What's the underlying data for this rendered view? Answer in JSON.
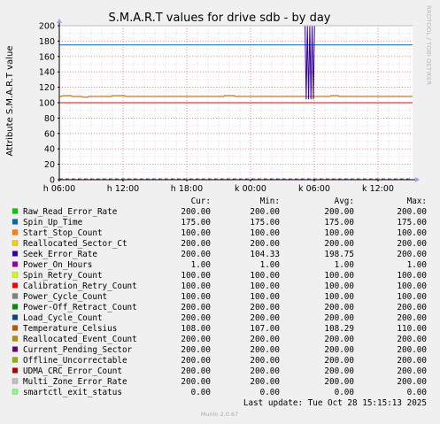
{
  "chart_data": {
    "type": "line",
    "title": "S.M.A.R.T values for drive sdb - by day",
    "ylabel": "Attribute S.M.A.R.T value",
    "watermark": "RRDTOOL / TOBI OETIKER",
    "footer": "Munin 2.0.67",
    "ylim": [
      0,
      200
    ],
    "y_ticks": [
      "0",
      "20",
      "40",
      "60",
      "80",
      "100",
      "120",
      "140",
      "160",
      "180",
      "200"
    ],
    "x_ticks": [
      "h 06:00",
      "h 12:00",
      "h 18:00",
      "k 00:00",
      "k 06:00",
      "k 12:00"
    ],
    "grid": true,
    "legend_headers": [
      "Cur:",
      "Min:",
      "Avg:",
      "Max:"
    ],
    "series": [
      {
        "name": "Raw_Read_Error_Rate",
        "color": "#00cc00",
        "values": [
          "200.00",
          "200.00",
          "200.00",
          "200.00"
        ]
      },
      {
        "name": "Spin_Up_Time",
        "color": "#0066b3",
        "values": [
          "175.00",
          "175.00",
          "175.00",
          "175.00"
        ]
      },
      {
        "name": "Start_Stop_Count",
        "color": "#ff8000",
        "values": [
          "100.00",
          "100.00",
          "100.00",
          "100.00"
        ]
      },
      {
        "name": "Reallocated_Sector_Ct",
        "color": "#ffcc00",
        "values": [
          "200.00",
          "200.00",
          "200.00",
          "200.00"
        ]
      },
      {
        "name": "Seek_Error_Rate",
        "color": "#330099",
        "values": [
          "200.00",
          "104.33",
          "198.75",
          "200.00"
        ]
      },
      {
        "name": "Power_On_Hours",
        "color": "#990099",
        "values": [
          "1.00",
          "1.00",
          "1.00",
          "1.00"
        ]
      },
      {
        "name": "Spin_Retry_Count",
        "color": "#ccff00",
        "values": [
          "100.00",
          "100.00",
          "100.00",
          "100.00"
        ]
      },
      {
        "name": "Calibration_Retry_Count",
        "color": "#ff0000",
        "values": [
          "100.00",
          "100.00",
          "100.00",
          "100.00"
        ]
      },
      {
        "name": "Power_Cycle_Count",
        "color": "#808080",
        "values": [
          "100.00",
          "100.00",
          "100.00",
          "100.00"
        ]
      },
      {
        "name": "Power-Off_Retract_Count",
        "color": "#008f00",
        "values": [
          "200.00",
          "200.00",
          "200.00",
          "200.00"
        ]
      },
      {
        "name": "Load_Cycle_Count",
        "color": "#00487d",
        "values": [
          "200.00",
          "200.00",
          "200.00",
          "200.00"
        ]
      },
      {
        "name": "Temperature_Celsius",
        "color": "#b35a00",
        "values": [
          "108.00",
          "107.00",
          "108.29",
          "110.00"
        ]
      },
      {
        "name": "Reallocated_Event_Count",
        "color": "#b38f00",
        "values": [
          "200.00",
          "200.00",
          "200.00",
          "200.00"
        ]
      },
      {
        "name": "Current_Pending_Sector",
        "color": "#6b006b",
        "values": [
          "200.00",
          "200.00",
          "200.00",
          "200.00"
        ]
      },
      {
        "name": "Offline_Uncorrectable",
        "color": "#8fb300",
        "values": [
          "200.00",
          "200.00",
          "200.00",
          "200.00"
        ]
      },
      {
        "name": "UDMA_CRC_Error_Count",
        "color": "#b30000",
        "values": [
          "200.00",
          "200.00",
          "200.00",
          "200.00"
        ]
      },
      {
        "name": "Multi_Zone_Error_Rate",
        "color": "#bebebe",
        "values": [
          "200.00",
          "200.00",
          "200.00",
          "200.00"
        ]
      },
      {
        "name": "smartctl_exit_status",
        "color": "#80ff80",
        "values": [
          "0.00",
          "0.00",
          "0.00",
          "0.00"
        ]
      }
    ],
    "last_update": "Last update: Tue Oct 28 15:15:13 2025"
  }
}
